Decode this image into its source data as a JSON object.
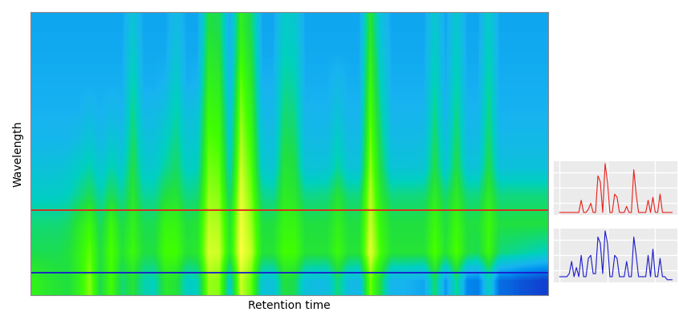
{
  "chart_data": {
    "type": "heatmap",
    "x_label": "Retention time",
    "y_label": "Wavelength",
    "tick_labels": false,
    "grid": true,
    "cells": [
      [
        30,
        30,
        30,
        30,
        30,
        30,
        30,
        30,
        30,
        42,
        30,
        30,
        30,
        38,
        30,
        30,
        62,
        60,
        32,
        70,
        58,
        30,
        30,
        45,
        44,
        30,
        30,
        30,
        30,
        30,
        30,
        66,
        40,
        30,
        30,
        30,
        30,
        44,
        30,
        44,
        30,
        30,
        46,
        30,
        30,
        30,
        30,
        30
      ],
      [
        31,
        31,
        31,
        31,
        31,
        31,
        31,
        31,
        31,
        46,
        31,
        31,
        31,
        42,
        31,
        31,
        66,
        64,
        33,
        74,
        62,
        31,
        31,
        48,
        47,
        31,
        31,
        31,
        31,
        31,
        31,
        70,
        44,
        31,
        31,
        31,
        31,
        47,
        31,
        47,
        31,
        31,
        49,
        31,
        31,
        31,
        31,
        31
      ],
      [
        32,
        32,
        32,
        32,
        32,
        32,
        32,
        32,
        32,
        50,
        32,
        32,
        34,
        46,
        32,
        34,
        70,
        68,
        36,
        80,
        66,
        33,
        33,
        52,
        50,
        32,
        32,
        32,
        36,
        32,
        32,
        74,
        48,
        32,
        32,
        32,
        32,
        50,
        32,
        50,
        32,
        32,
        52,
        32,
        32,
        32,
        32,
        32
      ],
      [
        33,
        33,
        33,
        33,
        33,
        36,
        33,
        36,
        34,
        54,
        36,
        36,
        40,
        50,
        38,
        40,
        74,
        72,
        40,
        84,
        70,
        36,
        35,
        56,
        54,
        34,
        34,
        34,
        40,
        34,
        34,
        78,
        52,
        34,
        34,
        34,
        34,
        54,
        34,
        54,
        34,
        34,
        55,
        33,
        33,
        33,
        33,
        33
      ],
      [
        35,
        35,
        35,
        35,
        38,
        42,
        36,
        42,
        38,
        58,
        40,
        40,
        46,
        54,
        42,
        44,
        78,
        76,
        44,
        88,
        74,
        40,
        38,
        60,
        58,
        37,
        37,
        37,
        46,
        37,
        37,
        82,
        56,
        37,
        37,
        37,
        38,
        58,
        38,
        58,
        37,
        37,
        58,
        36,
        36,
        36,
        36,
        36
      ],
      [
        40,
        40,
        40,
        42,
        46,
        50,
        42,
        50,
        44,
        62,
        44,
        44,
        52,
        58,
        46,
        48,
        82,
        80,
        48,
        92,
        78,
        44,
        42,
        64,
        62,
        41,
        41,
        41,
        52,
        41,
        41,
        86,
        60,
        41,
        41,
        41,
        42,
        62,
        42,
        62,
        41,
        41,
        62,
        40,
        40,
        40,
        40,
        40
      ],
      [
        46,
        46,
        46,
        48,
        54,
        60,
        50,
        60,
        52,
        66,
        52,
        52,
        62,
        64,
        54,
        56,
        86,
        84,
        56,
        96,
        82,
        54,
        52,
        68,
        66,
        54,
        54,
        55,
        64,
        55,
        55,
        90,
        66,
        55,
        55,
        55,
        56,
        68,
        56,
        68,
        55,
        55,
        68,
        55,
        55,
        55,
        55,
        55
      ],
      [
        56,
        56,
        56,
        58,
        66,
        74,
        58,
        74,
        60,
        70,
        60,
        60,
        72,
        72,
        62,
        64,
        90,
        88,
        64,
        98,
        86,
        62,
        62,
        72,
        72,
        62,
        62,
        62,
        70,
        62,
        62,
        92,
        72,
        62,
        62,
        62,
        62,
        74,
        62,
        74,
        62,
        62,
        74,
        62,
        62,
        62,
        62,
        62
      ],
      [
        60,
        60,
        60,
        62,
        70,
        80,
        62,
        78,
        64,
        74,
        62,
        62,
        76,
        76,
        64,
        66,
        94,
        92,
        66,
        100,
        90,
        64,
        64,
        76,
        76,
        64,
        64,
        64,
        74,
        64,
        64,
        96,
        76,
        64,
        64,
        64,
        64,
        78,
        64,
        78,
        62,
        60,
        74,
        56,
        54,
        52,
        50,
        48
      ],
      [
        70,
        66,
        64,
        62,
        70,
        84,
        60,
        76,
        56,
        64,
        50,
        48,
        66,
        64,
        46,
        48,
        86,
        84,
        44,
        92,
        80,
        42,
        40,
        62,
        60,
        40,
        38,
        38,
        56,
        38,
        36,
        82,
        60,
        34,
        34,
        32,
        30,
        58,
        26,
        54,
        22,
        20,
        46,
        16,
        14,
        10,
        8,
        5
      ]
    ],
    "series": [
      {
        "color": "#e8201c",
        "values": [
          2,
          2,
          2,
          2,
          2,
          2,
          2,
          2,
          2,
          6,
          2,
          2,
          3,
          5,
          2,
          2,
          14,
          12,
          2,
          18,
          12,
          2,
          2,
          8,
          7,
          2,
          2,
          2,
          4,
          2,
          2,
          16,
          8,
          2,
          2,
          2,
          2,
          6,
          2,
          7,
          2,
          2,
          8,
          2,
          2,
          2,
          2,
          2
        ]
      },
      {
        "color": "#1a1acc",
        "values": [
          3,
          3,
          3,
          3,
          4,
          8,
          3,
          6,
          3,
          10,
          3,
          3,
          9,
          10,
          4,
          4,
          16,
          14,
          4,
          18,
          14,
          3,
          3,
          10,
          9,
          3,
          3,
          3,
          8,
          3,
          3,
          16,
          10,
          3,
          3,
          3,
          3,
          10,
          3,
          12,
          3,
          3,
          9,
          3,
          3,
          2,
          2,
          2
        ]
      }
    ]
  }
}
